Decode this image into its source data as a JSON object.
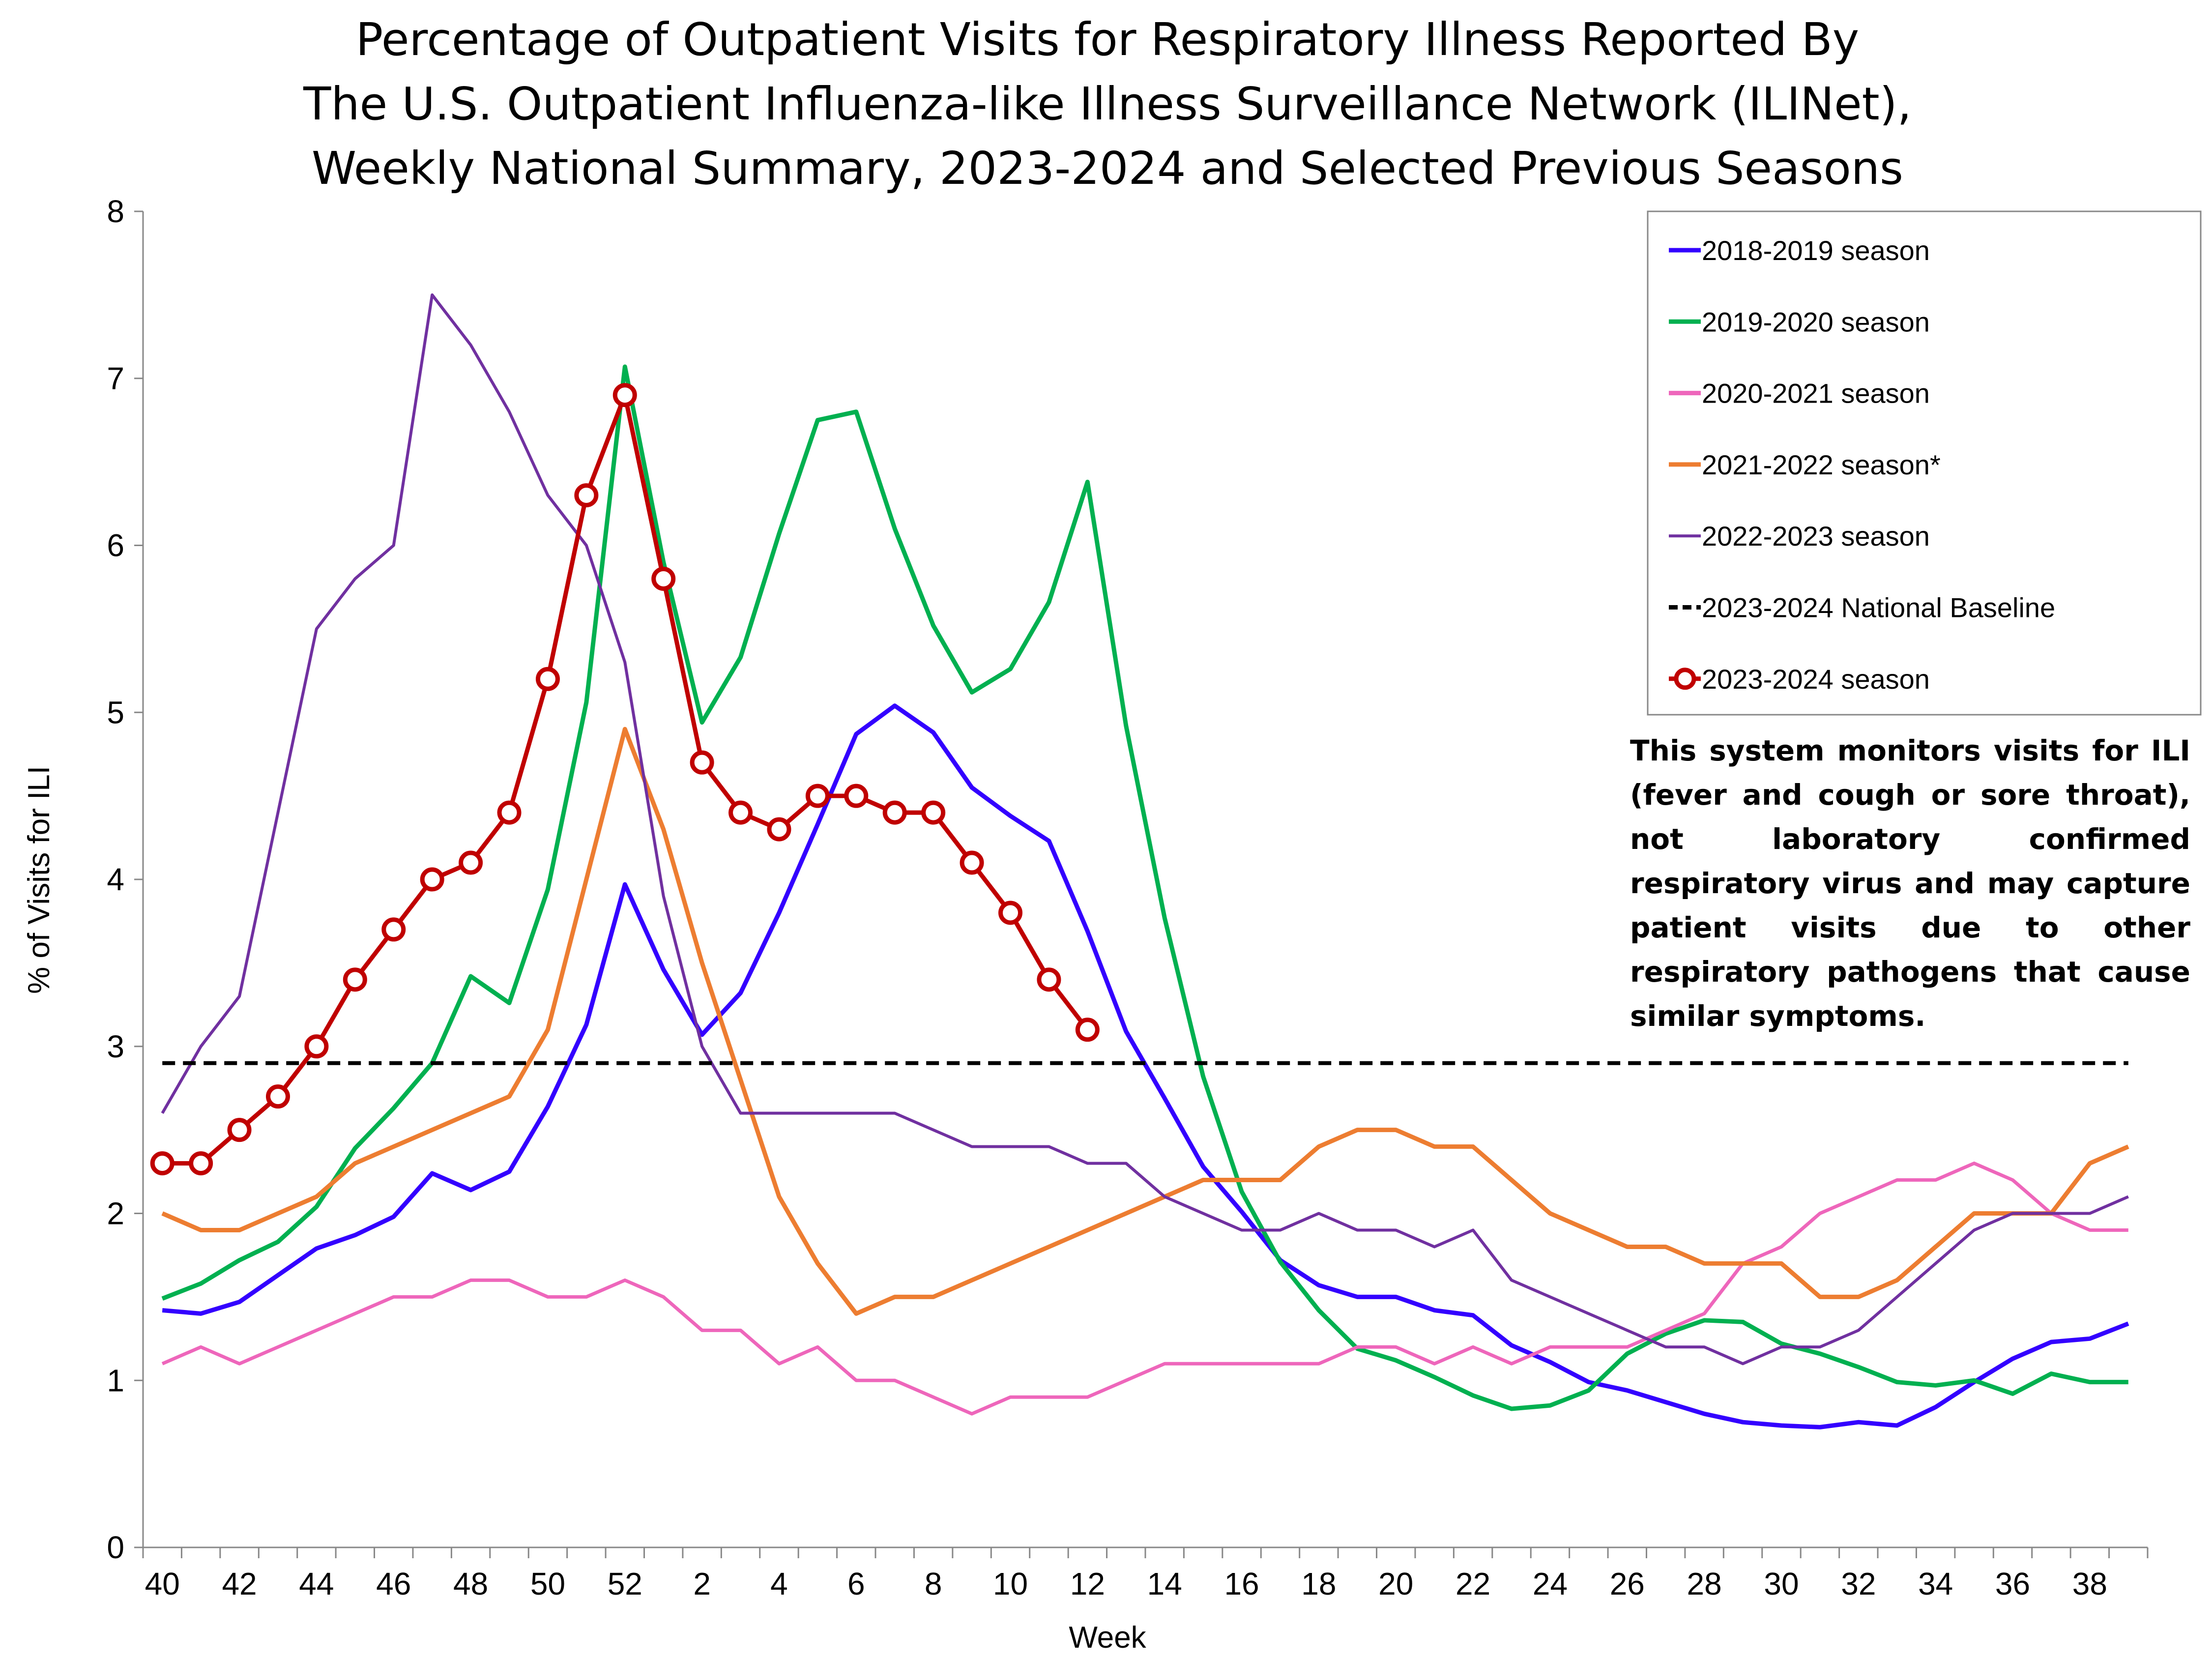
{
  "chart_data": {
    "type": "line",
    "title": [
      "Percentage of Outpatient Visits for Respiratory Illness Reported By",
      "The U.S. Outpatient Influenza-like Illness Surveillance Network (ILINet),",
      "Weekly National Summary, 2023-2024 and Selected Previous Seasons"
    ],
    "xlabel": "Week",
    "ylabel": "% of Visits for ILI",
    "ylim": [
      0,
      8
    ],
    "yticks": [
      0,
      1,
      2,
      3,
      4,
      5,
      6,
      7,
      8
    ],
    "categories": [
      40,
      41,
      42,
      43,
      44,
      45,
      46,
      47,
      48,
      49,
      50,
      51,
      52,
      1,
      2,
      3,
      4,
      5,
      6,
      7,
      8,
      9,
      10,
      11,
      12,
      13,
      14,
      15,
      16,
      17,
      18,
      19,
      20,
      21,
      22,
      23,
      24,
      25,
      26,
      27,
      28,
      29,
      30,
      31,
      32,
      33,
      34,
      35,
      36,
      37,
      38,
      39
    ],
    "xtick_labels": [
      "40",
      "42",
      "44",
      "46",
      "48",
      "50",
      "52",
      "2",
      "4",
      "6",
      "8",
      "10",
      "12",
      "14",
      "16",
      "18",
      "20",
      "22",
      "24",
      "26",
      "28",
      "30",
      "32",
      "34",
      "36",
      "38"
    ],
    "grid": false,
    "legend_position": "top-right",
    "series": [
      {
        "name": "2018-2019 season",
        "color": "#3300FF",
        "style": "solid",
        "values": [
          1.42,
          1.4,
          1.47,
          1.63,
          1.79,
          1.87,
          1.98,
          2.24,
          2.14,
          2.25,
          2.64,
          3.13,
          3.97,
          3.46,
          3.07,
          3.32,
          3.8,
          4.33,
          4.87,
          5.04,
          4.88,
          4.55,
          4.38,
          4.23,
          3.69,
          3.09,
          2.69,
          2.28,
          2.01,
          1.72,
          1.57,
          1.5,
          1.5,
          1.42,
          1.39,
          1.21,
          1.11,
          0.99,
          0.94,
          0.87,
          0.8,
          0.75,
          0.73,
          0.72,
          0.75,
          0.73,
          0.84,
          0.99,
          1.13,
          1.23,
          1.25,
          1.34
        ]
      },
      {
        "name": "2019-2020 season",
        "color": "#00B050",
        "style": "solid",
        "values": [
          1.49,
          1.58,
          1.72,
          1.83,
          2.04,
          2.39,
          2.63,
          2.9,
          3.42,
          3.26,
          3.94,
          5.06,
          7.07,
          5.9,
          4.94,
          5.33,
          6.07,
          6.75,
          6.8,
          6.1,
          5.52,
          5.12,
          5.26,
          5.66,
          6.38,
          4.92,
          3.77,
          2.82,
          2.13,
          1.71,
          1.42,
          1.19,
          1.12,
          1.02,
          0.91,
          0.83,
          0.85,
          0.94,
          1.16,
          1.28,
          1.36,
          1.35,
          1.22,
          1.16,
          1.08,
          0.99,
          0.97,
          1.0,
          0.92,
          1.04,
          0.99,
          0.99
        ]
      },
      {
        "name": "2020-2021 season",
        "color": "#EE66BB",
        "style": "solid",
        "values": [
          1.1,
          1.2,
          1.1,
          1.2,
          1.3,
          1.4,
          1.5,
          1.5,
          1.6,
          1.6,
          1.5,
          1.5,
          1.6,
          1.5,
          1.3,
          1.3,
          1.1,
          1.2,
          1.0,
          1.0,
          0.9,
          0.8,
          0.9,
          0.9,
          0.9,
          1.0,
          1.1,
          1.1,
          1.1,
          1.1,
          1.1,
          1.2,
          1.2,
          1.1,
          1.2,
          1.1,
          1.2,
          1.2,
          1.2,
          1.3,
          1.4,
          1.7,
          1.8,
          2.0,
          2.1,
          2.2,
          2.2,
          2.3,
          2.2,
          2.0,
          1.9,
          1.9
        ]
      },
      {
        "name": "2021-2022 season*",
        "color": "#ED7D31",
        "style": "solid",
        "values": [
          2.0,
          1.9,
          1.9,
          2.0,
          2.1,
          2.3,
          2.4,
          2.5,
          2.6,
          2.7,
          3.1,
          4.0,
          4.9,
          4.3,
          3.5,
          2.8,
          2.1,
          1.7,
          1.4,
          1.5,
          1.5,
          1.6,
          1.7,
          1.8,
          1.9,
          2.0,
          2.1,
          2.2,
          2.2,
          2.2,
          2.4,
          2.5,
          2.5,
          2.4,
          2.4,
          2.2,
          2.0,
          1.9,
          1.8,
          1.8,
          1.7,
          1.7,
          1.7,
          1.5,
          1.5,
          1.6,
          1.8,
          2.0,
          2.0,
          2.0,
          2.3,
          2.4
        ]
      },
      {
        "name": "2022-2023 season",
        "color": "#7030A0",
        "style": "thin",
        "values": [
          2.6,
          3.0,
          3.3,
          4.4,
          5.5,
          5.8,
          6.0,
          7.5,
          7.2,
          6.8,
          6.3,
          6.0,
          5.3,
          3.9,
          3.0,
          2.6,
          2.6,
          2.6,
          2.6,
          2.6,
          2.5,
          2.4,
          2.4,
          2.4,
          2.3,
          2.3,
          2.1,
          2.0,
          1.9,
          1.9,
          2.0,
          1.9,
          1.9,
          1.8,
          1.9,
          1.6,
          1.5,
          1.4,
          1.3,
          1.2,
          1.2,
          1.1,
          1.2,
          1.2,
          1.3,
          1.5,
          1.7,
          1.9,
          2.0,
          2.0,
          2.0,
          2.1
        ]
      },
      {
        "name": "2023-2024 National Baseline",
        "color": "#000000",
        "style": "dashed",
        "values": [
          2.9,
          2.9,
          2.9,
          2.9,
          2.9,
          2.9,
          2.9,
          2.9,
          2.9,
          2.9,
          2.9,
          2.9,
          2.9,
          2.9,
          2.9,
          2.9,
          2.9,
          2.9,
          2.9,
          2.9,
          2.9,
          2.9,
          2.9,
          2.9,
          2.9,
          2.9,
          2.9,
          2.9,
          2.9,
          2.9,
          2.9,
          2.9,
          2.9,
          2.9,
          2.9,
          2.9,
          2.9,
          2.9,
          2.9,
          2.9,
          2.9,
          2.9,
          2.9,
          2.9,
          2.9,
          2.9,
          2.9,
          2.9,
          2.9,
          2.9,
          2.9,
          2.9
        ]
      },
      {
        "name": "2023-2024 season",
        "color": "#C00000",
        "style": "markers",
        "values": [
          2.3,
          2.3,
          2.5,
          2.7,
          3.0,
          3.4,
          3.7,
          4.0,
          4.1,
          4.4,
          5.2,
          6.3,
          6.9,
          5.8,
          4.7,
          4.4,
          4.3,
          4.5,
          4.5,
          4.4,
          4.4,
          4.1,
          3.8,
          3.4,
          3.1,
          null,
          null,
          null,
          null,
          null,
          null,
          null,
          null,
          null,
          null,
          null,
          null,
          null,
          null,
          null,
          null,
          null,
          null,
          null,
          null,
          null,
          null,
          null,
          null,
          null,
          null,
          null
        ]
      }
    ],
    "annotation": "This system monitors visits for ILI (fever and cough or sore throat), not laboratory confirmed respiratory virus and may capture patient visits due to other respiratory pathogens that cause similar symptoms."
  }
}
